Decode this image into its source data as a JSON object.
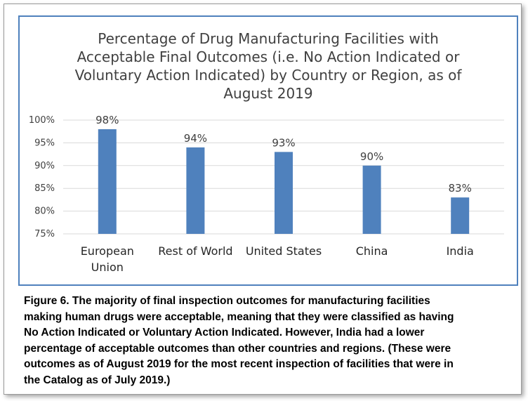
{
  "chart_data": {
    "type": "bar",
    "title_lines": [
      "Percentage of Drug Manufacturing Facilities with",
      "Acceptable Final Outcomes (i.e. No Action Indicated or",
      "Voluntary Action Indicated) by Country or Region, as of",
      "August 2019"
    ],
    "categories": [
      [
        "European",
        "Union"
      ],
      [
        "Rest of World"
      ],
      [
        "United States"
      ],
      [
        "China"
      ],
      [
        "India"
      ]
    ],
    "values": [
      98,
      94,
      93,
      90,
      83
    ],
    "data_labels": [
      "98%",
      "94%",
      "93%",
      "90%",
      "83%"
    ],
    "ylim": [
      75,
      100
    ],
    "yticks": [
      75,
      80,
      85,
      90,
      95,
      100
    ],
    "ytick_labels": [
      "75%",
      "80%",
      "85%",
      "90%",
      "95%",
      "100%"
    ],
    "grid": true,
    "bar_color": "#4f81bd",
    "xlabel": "",
    "ylabel": ""
  },
  "caption_lines": [
    "Figure 6.  The majority of final inspection outcomes for manufacturing facilities",
    "making human drugs were acceptable, meaning that they were classified as having",
    "No Action Indicated or Voluntary Action Indicated.  However, India had a lower",
    "percentage of acceptable outcomes than other countries and regions. (These were",
    "outcomes as of August 2019 for the most recent inspection of facilities that were in",
    "the Catalog as of July 2019.)"
  ]
}
